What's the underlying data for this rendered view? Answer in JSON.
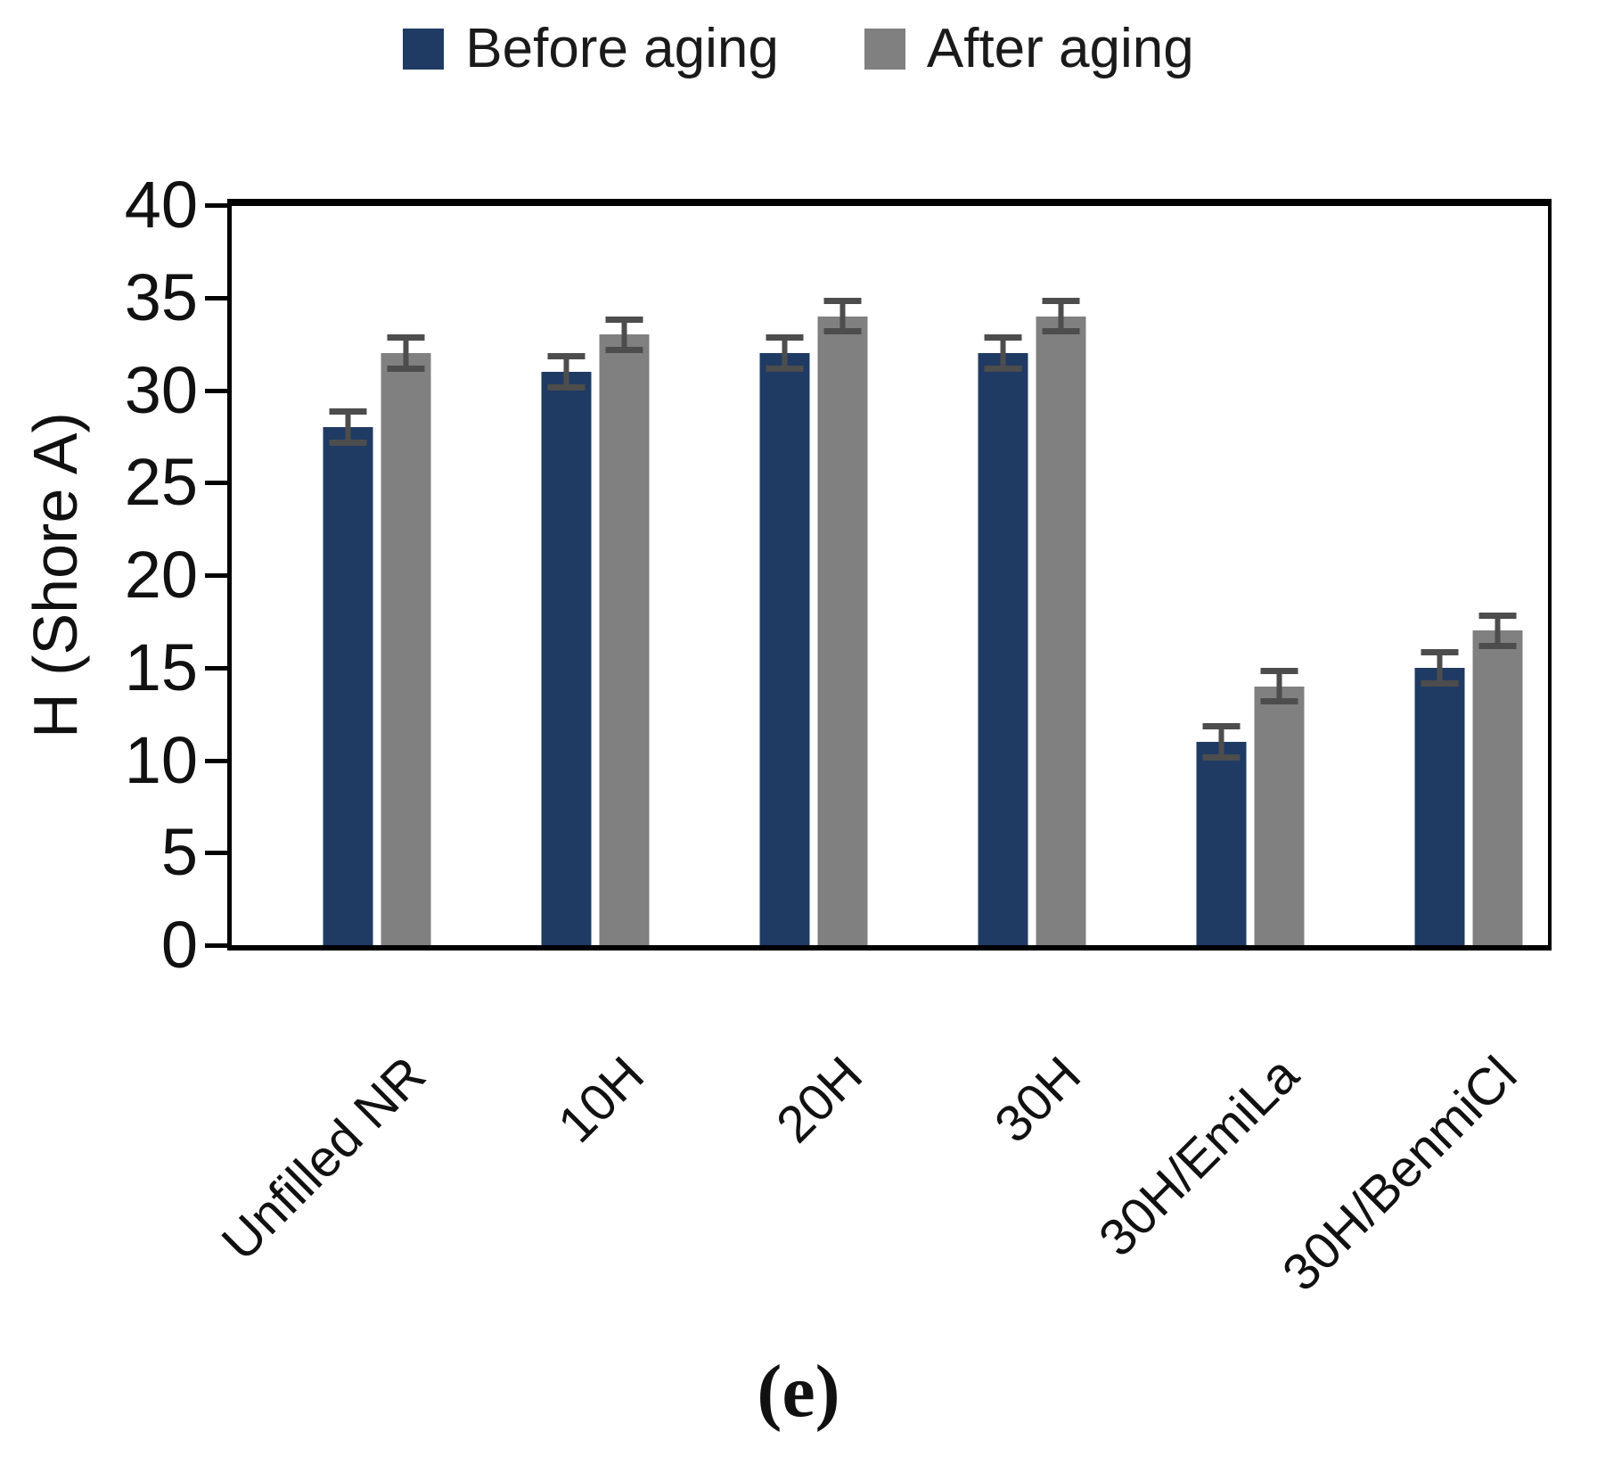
{
  "chart_data": {
    "type": "bar",
    "title": "",
    "ylabel": "H (Shore A)",
    "xlabel": "",
    "ylim": [
      0,
      40
    ],
    "yticks": [
      0,
      5,
      10,
      15,
      20,
      25,
      30,
      35,
      40
    ],
    "grid": false,
    "legend_position": "top",
    "caption": "(e)",
    "categories": [
      "Unfilled NR",
      "10H",
      "20H",
      "30H",
      "30H/EmiLa",
      "30H/BenmiCl"
    ],
    "series": [
      {
        "name": "Before aging",
        "color": "#1f3b63",
        "values": [
          28,
          31,
          32,
          32,
          11,
          15
        ],
        "errors": [
          1,
          1,
          1,
          1,
          1,
          1
        ]
      },
      {
        "name": "After aging",
        "color": "#808080",
        "values": [
          32,
          33,
          34,
          34,
          14,
          17
        ],
        "errors": [
          1,
          1,
          1,
          1,
          1,
          1
        ]
      }
    ],
    "colors": {
      "error_bar": "#4d4d4d",
      "axis": "#000000",
      "text": "#111111"
    }
  }
}
